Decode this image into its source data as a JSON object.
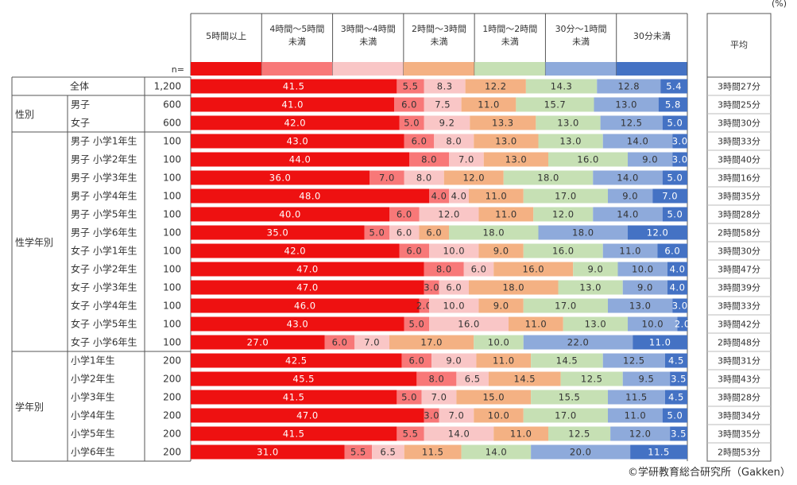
{
  "unit": "(%)",
  "credit": "©学研教育総合研究所（Gakken）",
  "n_label": "n=",
  "avg_header": "平均",
  "chart_data": {
    "type": "stacked-bar",
    "orientation": "horizontal",
    "xlim": [
      0,
      100
    ],
    "legend": [
      {
        "line1": "5時間以上",
        "line2": "",
        "color": "#ee1111"
      },
      {
        "line1": "4時間～5時間",
        "line2": "未満",
        "color": "#f87878"
      },
      {
        "line1": "3時間～4時間",
        "line2": "未満",
        "color": "#f9c6c6"
      },
      {
        "line1": "2時間～3時間",
        "line2": "未満",
        "color": "#f4b183"
      },
      {
        "line1": "1時間～2時間",
        "line2": "未満",
        "color": "#c6e0b4"
      },
      {
        "line1": "30分～1時間",
        "line2": "未満",
        "color": "#8eaadb"
      },
      {
        "line1": "30分未満",
        "line2": "",
        "color": "#4472c4"
      }
    ],
    "groups": [
      {
        "label": "",
        "rows": [
          0
        ]
      },
      {
        "label": "性別",
        "rows": [
          1,
          2
        ]
      },
      {
        "label": "性学年別",
        "rows": [
          3,
          4,
          5,
          6,
          7,
          8,
          9,
          10,
          11,
          12,
          13,
          14
        ]
      },
      {
        "label": "学年別",
        "rows": [
          15,
          16,
          17,
          18,
          19,
          20
        ]
      }
    ],
    "rows": [
      {
        "label": "全体",
        "n": "1,200",
        "values": [
          41.5,
          5.5,
          8.3,
          12.2,
          14.3,
          12.8,
          5.4
        ],
        "labels": [
          "41.5",
          "5.5",
          "8.3",
          "12.2",
          "14.3",
          "12.8",
          "5.4"
        ],
        "avg": "3時間27分"
      },
      {
        "label": "男子",
        "n": "600",
        "values": [
          41.0,
          6.0,
          7.5,
          11.0,
          15.7,
          13.0,
          5.8
        ],
        "labels": [
          "41.0",
          "6.0",
          "7.5",
          "11.0",
          "15.7",
          "13.0",
          "5.8"
        ],
        "avg": "3時間25分"
      },
      {
        "label": "女子",
        "n": "600",
        "values": [
          42.0,
          5.0,
          9.2,
          13.3,
          13.0,
          12.5,
          5.0
        ],
        "labels": [
          "42.0",
          "5.0",
          "9.2",
          "13.3",
          "13.0",
          "12.5",
          "5.0"
        ],
        "avg": "3時間30分"
      },
      {
        "label": "男子  小学1年生",
        "n": "100",
        "values": [
          43.0,
          6.0,
          8.0,
          13.0,
          13.0,
          14.0,
          3.0
        ],
        "labels": [
          "43.0",
          "6.0",
          "8.0",
          "13.0",
          "13.0",
          "14.0",
          "3.0"
        ],
        "avg": "3時間33分"
      },
      {
        "label": "男子  小学2年生",
        "n": "100",
        "values": [
          44.0,
          8.0,
          7.0,
          13.0,
          16.0,
          9.0,
          3.0
        ],
        "labels": [
          "44.0",
          "8.0",
          "7.0",
          "13.0",
          "16.0",
          "9.0",
          "3.0"
        ],
        "avg": "3時間40分"
      },
      {
        "label": "男子  小学3年生",
        "n": "100",
        "values": [
          36.0,
          7.0,
          8.0,
          12.0,
          18.0,
          14.0,
          5.0
        ],
        "labels": [
          "36.0",
          "7.0",
          "8.0",
          "12.0",
          "18.0",
          "14.0",
          "5.0"
        ],
        "avg": "3時間16分"
      },
      {
        "label": "男子  小学4年生",
        "n": "100",
        "values": [
          48.0,
          4.0,
          4.0,
          11.0,
          17.0,
          9.0,
          7.0
        ],
        "labels": [
          "48.0",
          "4.0",
          "4.0",
          "11.0",
          "17.0",
          "9.0",
          "7.0"
        ],
        "avg": "3時間35分"
      },
      {
        "label": "男子  小学5年生",
        "n": "100",
        "values": [
          40.0,
          6.0,
          12.0,
          11.0,
          12.0,
          14.0,
          5.0
        ],
        "labels": [
          "40.0",
          "6.0",
          "12.0",
          "11.0",
          "12.0",
          "14.0",
          "5.0"
        ],
        "avg": "3時間28分"
      },
      {
        "label": "男子  小学6年生",
        "n": "100",
        "values": [
          35.0,
          5.0,
          6.0,
          6.0,
          18.0,
          18.0,
          12.0
        ],
        "labels": [
          "35.0",
          "5.0",
          "6.0",
          "6.0",
          "18.0",
          "18.0",
          "12.0"
        ],
        "avg": "2時間58分"
      },
      {
        "label": "女子  小学1年生",
        "n": "100",
        "values": [
          42.0,
          6.0,
          10.0,
          9.0,
          16.0,
          11.0,
          6.0
        ],
        "labels": [
          "42.0",
          "6.0",
          "10.0",
          "9.0",
          "16.0",
          "11.0",
          "6.0"
        ],
        "avg": "3時間30分"
      },
      {
        "label": "女子  小学2年生",
        "n": "100",
        "values": [
          47.0,
          8.0,
          6.0,
          16.0,
          9.0,
          10.0,
          4.0
        ],
        "labels": [
          "47.0",
          "8.0",
          "6.0",
          "16.0",
          "9.0",
          "10.0",
          "4.0"
        ],
        "avg": "3時間47分"
      },
      {
        "label": "女子  小学3年生",
        "n": "100",
        "values": [
          47.0,
          3.0,
          6.0,
          18.0,
          13.0,
          9.0,
          4.0
        ],
        "labels": [
          "47.0",
          "3.0",
          "6.0",
          "18.0",
          "13.0",
          "9.0",
          "4.0"
        ],
        "avg": "3時間39分"
      },
      {
        "label": "女子  小学4年生",
        "n": "100",
        "values": [
          46.0,
          2.0,
          10.0,
          9.0,
          17.0,
          13.0,
          3.0
        ],
        "labels": [
          "46.0",
          "2.0",
          "10.0",
          "9.0",
          "17.0",
          "13.0",
          "3.0"
        ],
        "avg": "3時間33分"
      },
      {
        "label": "女子  小学5年生",
        "n": "100",
        "values": [
          43.0,
          5.0,
          16.0,
          11.0,
          13.0,
          10.0,
          2.0
        ],
        "labels": [
          "43.0",
          "5.0",
          "16.0",
          "11.0",
          "13.0",
          "10.0",
          "2.0"
        ],
        "avg": "3時間42分"
      },
      {
        "label": "女子  小学6年生",
        "n": "100",
        "values": [
          27.0,
          6.0,
          7.0,
          17.0,
          10.0,
          22.0,
          11.0
        ],
        "labels": [
          "27.0",
          "6.0",
          "7.0",
          "17.0",
          "10.0",
          "22.0",
          "11.0"
        ],
        "avg": "2時間48分"
      },
      {
        "label": "小学1年生",
        "n": "200",
        "values": [
          42.5,
          6.0,
          9.0,
          11.0,
          14.5,
          12.5,
          4.5
        ],
        "labels": [
          "42.5",
          "6.0",
          "9.0",
          "11.0",
          "14.5",
          "12.5",
          "4.5"
        ],
        "avg": "3時間31分"
      },
      {
        "label": "小学2年生",
        "n": "200",
        "values": [
          45.5,
          8.0,
          6.5,
          14.5,
          12.5,
          9.5,
          3.5
        ],
        "labels": [
          "45.5",
          "8.0",
          "6.5",
          "14.5",
          "12.5",
          "9.5",
          "3.5"
        ],
        "avg": "3時間43分"
      },
      {
        "label": "小学3年生",
        "n": "200",
        "values": [
          41.5,
          5.0,
          7.0,
          15.0,
          15.5,
          11.5,
          4.5
        ],
        "labels": [
          "41.5",
          "5.0",
          "7.0",
          "15.0",
          "15.5",
          "11.5",
          "4.5"
        ],
        "avg": "3時間28分"
      },
      {
        "label": "小学4年生",
        "n": "200",
        "values": [
          47.0,
          3.0,
          7.0,
          10.0,
          17.0,
          11.0,
          5.0
        ],
        "labels": [
          "47.0",
          "3.0",
          "7.0",
          "10.0",
          "17.0",
          "11.0",
          "5.0"
        ],
        "avg": "3時間34分"
      },
      {
        "label": "小学5年生",
        "n": "200",
        "values": [
          41.5,
          5.5,
          14.0,
          11.0,
          12.5,
          12.0,
          3.5
        ],
        "labels": [
          "41.5",
          "5.5",
          "14.0",
          "11.0",
          "12.5",
          "12.0",
          "3.5"
        ],
        "avg": "3時間35分"
      },
      {
        "label": "小学6年生",
        "n": "200",
        "values": [
          31.0,
          5.5,
          6.5,
          11.5,
          14.0,
          20.0,
          11.5
        ],
        "labels": [
          "31.0",
          "5.5",
          "6.5",
          "11.5",
          "14.0",
          "20.0",
          "11.5"
        ],
        "avg": "2時間53分"
      }
    ]
  }
}
